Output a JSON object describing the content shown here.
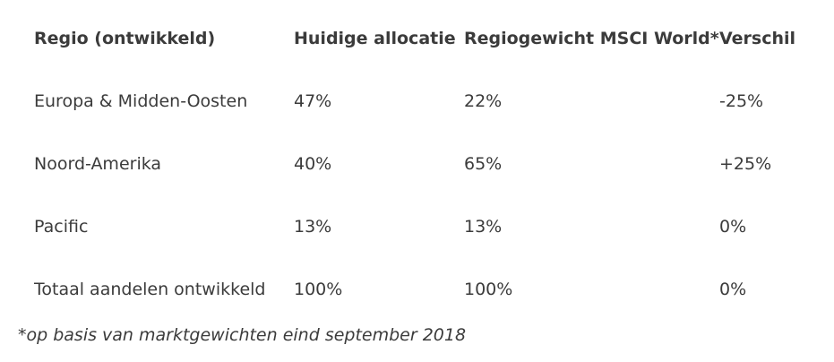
{
  "colors": {
    "background": "#ffffff",
    "text": "#3b3b3b"
  },
  "table": {
    "columns": [
      "Regio (ontwikkeld)",
      "Huidige allocatie",
      "Regiogewicht MSCI World*",
      "Verschil"
    ],
    "rows": [
      {
        "regio": "Europa & Midden-Oosten",
        "huidige": "47%",
        "msci": "22%",
        "verschil": "-25%"
      },
      {
        "regio": "Noord-Amerika",
        "huidige": "40%",
        "msci": "65%",
        "verschil": "+25%"
      },
      {
        "regio": "Pacific",
        "huidige": "13%",
        "msci": "13%",
        "verschil": "0%"
      },
      {
        "regio": "Totaal aandelen ontwikkeld",
        "huidige": "100%",
        "msci": "100%",
        "verschil": "0%"
      }
    ],
    "footnote": "*op basis van marktgewichten eind september 2018"
  }
}
